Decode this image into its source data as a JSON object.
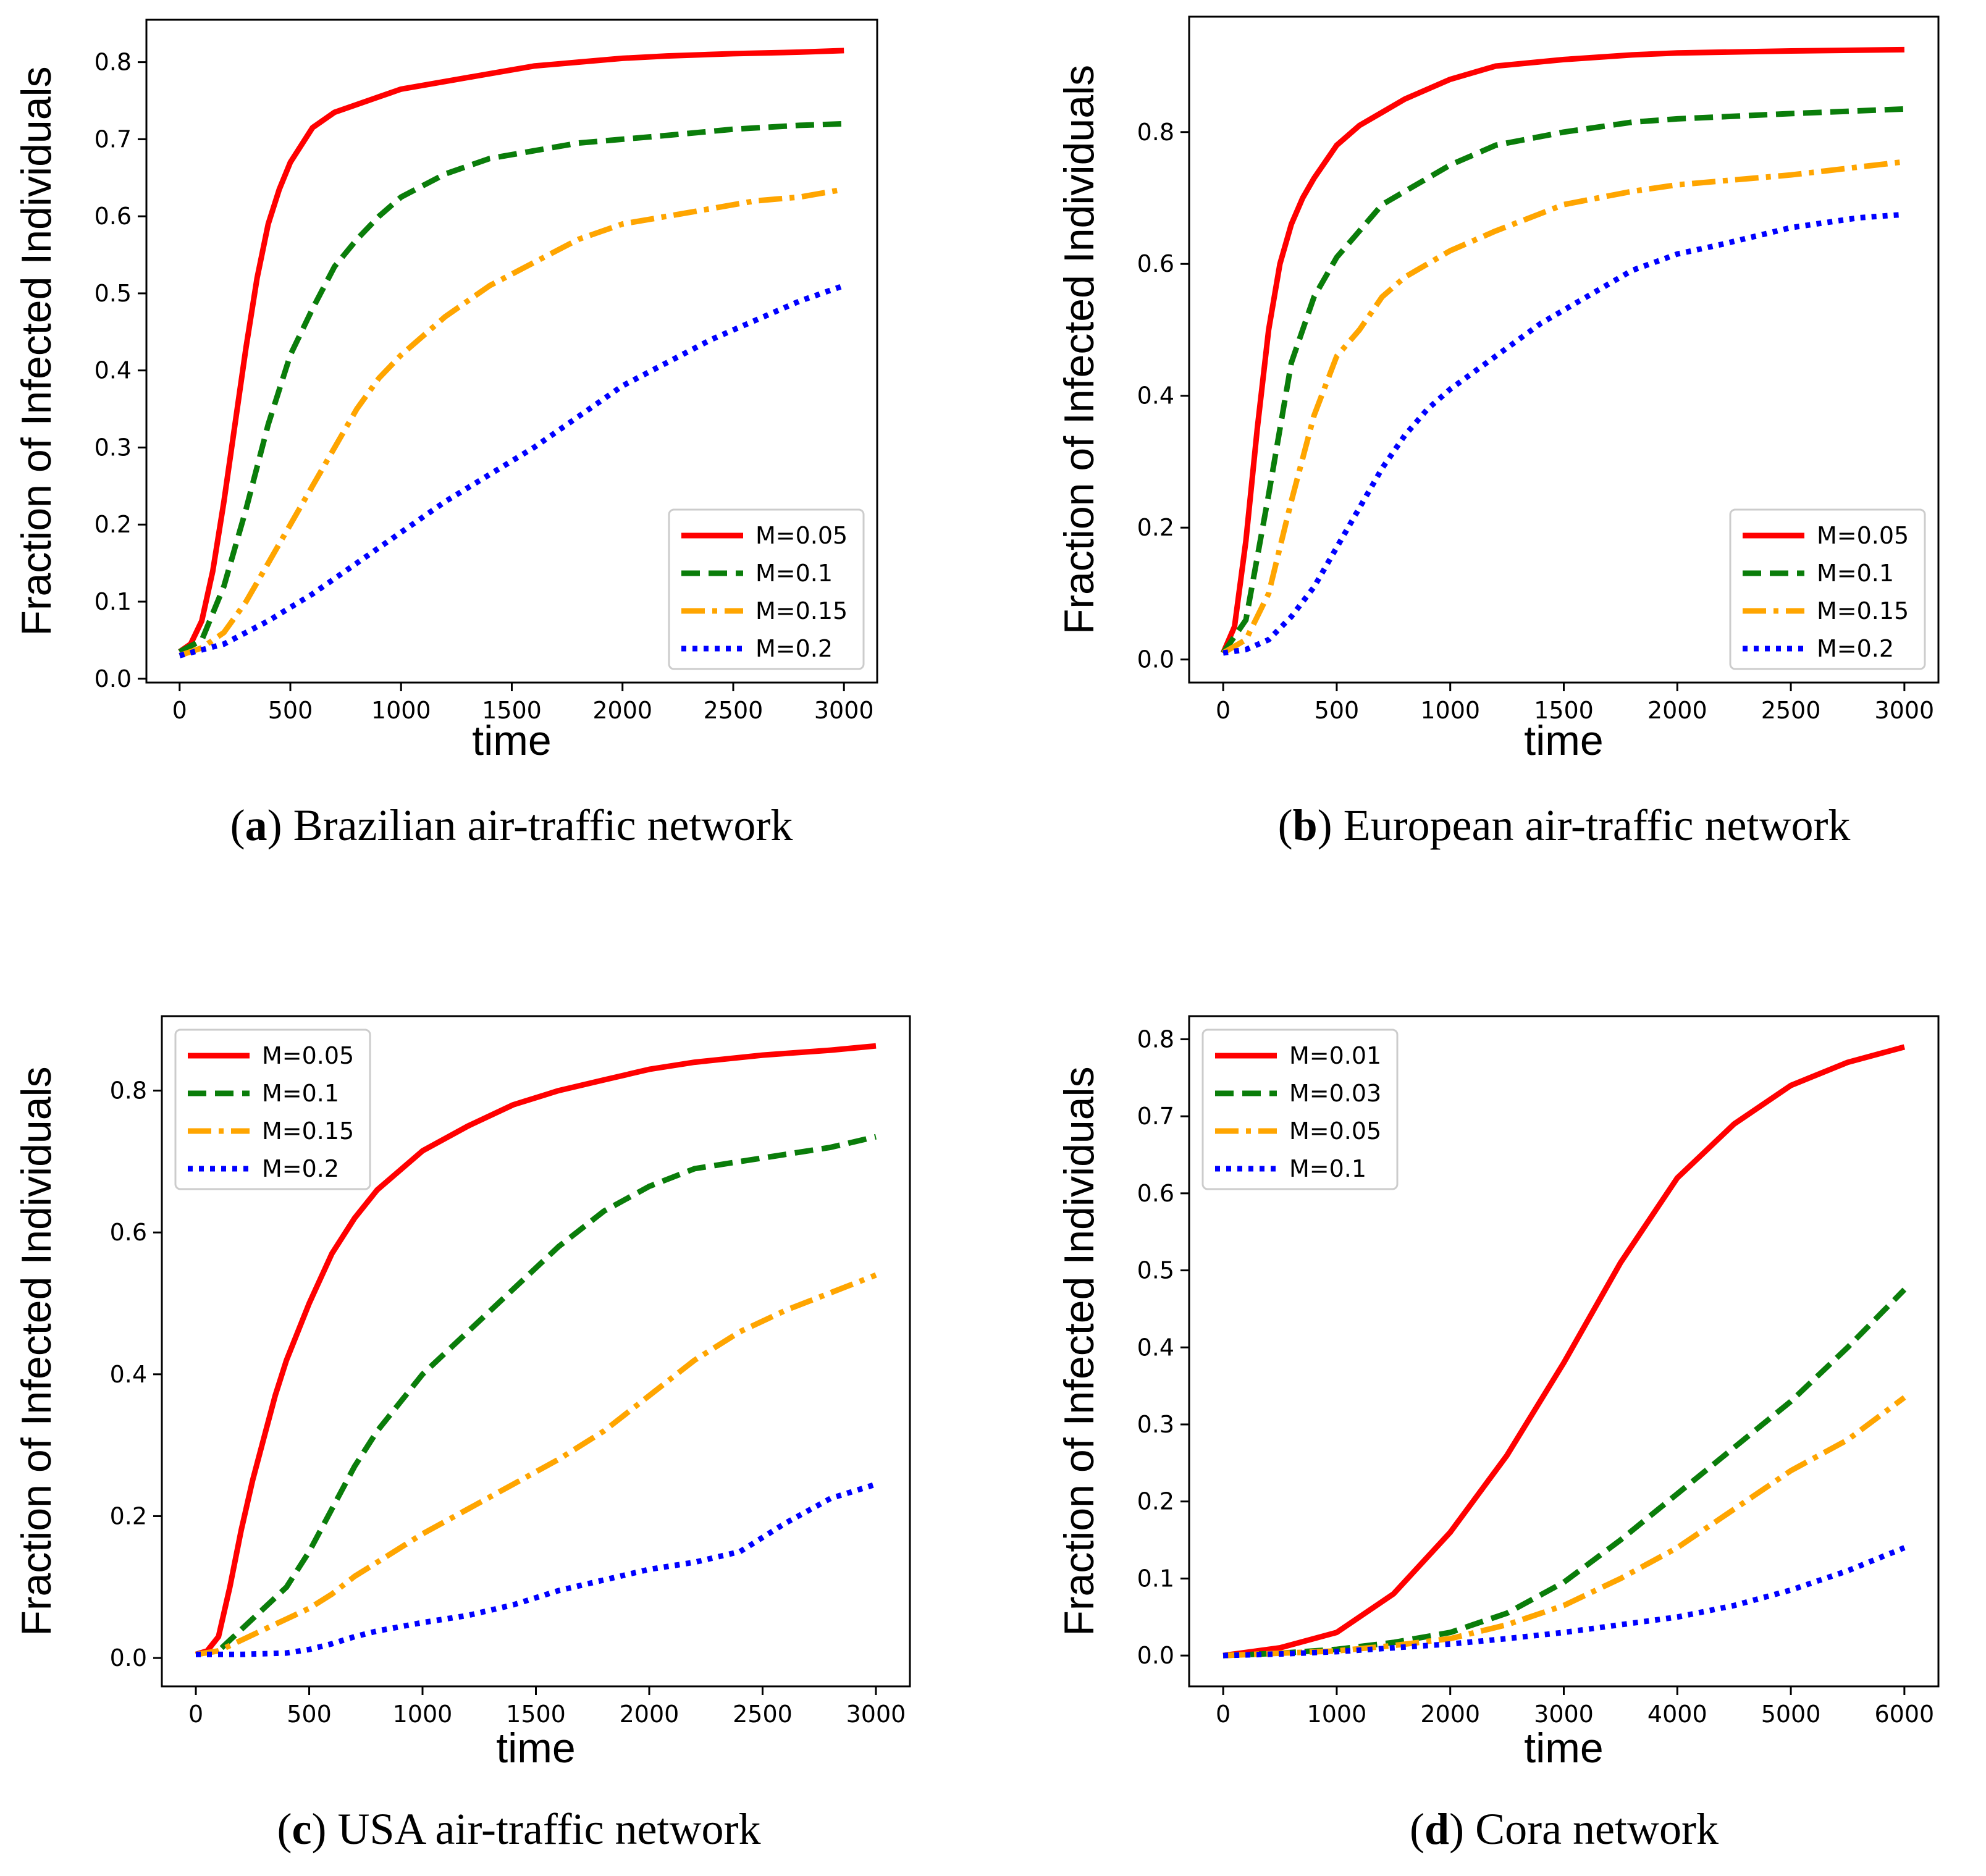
{
  "chart_data": [
    {
      "type": "line",
      "caption_letter": "a",
      "caption_text": "Brazilian air-traffic network",
      "xlabel": "time",
      "ylabel": "Fraction of Infected Individuals",
      "xlim": [
        -150,
        3150
      ],
      "ylim": [
        -0.005,
        0.855
      ],
      "xticks": [
        0,
        500,
        1000,
        1500,
        2000,
        2500,
        3000
      ],
      "xtick_labels": [
        "0",
        "500",
        "1000",
        "1500",
        "2000",
        "2500",
        "3000"
      ],
      "yticks": [
        0,
        0.1,
        0.2,
        0.3,
        0.4,
        0.5,
        0.6,
        0.7,
        0.8
      ],
      "ytick_labels": [
        "0.0",
        "0.1",
        "0.2",
        "0.3",
        "0.4",
        "0.5",
        "0.6",
        "0.7",
        "0.8"
      ],
      "legend_position": "lower-right",
      "series": [
        {
          "name": "M=0.05",
          "color": "#ff0000",
          "style": "solid",
          "x": [
            0,
            50,
            100,
            150,
            200,
            250,
            300,
            350,
            400,
            450,
            500,
            600,
            700,
            800,
            900,
            1000,
            1200,
            1400,
            1600,
            1800,
            2000,
            2200,
            2500,
            2800,
            3000
          ],
          "y": [
            0.035,
            0.045,
            0.075,
            0.14,
            0.23,
            0.33,
            0.43,
            0.52,
            0.59,
            0.635,
            0.67,
            0.715,
            0.735,
            0.745,
            0.755,
            0.765,
            0.775,
            0.785,
            0.795,
            0.8,
            0.805,
            0.808,
            0.811,
            0.813,
            0.815
          ]
        },
        {
          "name": "M=0.1",
          "color": "#0a7d0a",
          "style": "dashed",
          "x": [
            0,
            100,
            200,
            300,
            400,
            500,
            600,
            700,
            800,
            900,
            1000,
            1200,
            1400,
            1600,
            1800,
            2000,
            2200,
            2500,
            2800,
            3000
          ],
          "y": [
            0.035,
            0.05,
            0.12,
            0.22,
            0.33,
            0.42,
            0.48,
            0.535,
            0.57,
            0.6,
            0.625,
            0.655,
            0.675,
            0.685,
            0.695,
            0.7,
            0.705,
            0.713,
            0.718,
            0.72
          ]
        },
        {
          "name": "M=0.15",
          "color": "#ffa500",
          "style": "dashdot",
          "x": [
            0,
            100,
            200,
            300,
            400,
            500,
            600,
            700,
            800,
            900,
            1000,
            1200,
            1400,
            1600,
            1800,
            2000,
            2200,
            2400,
            2600,
            2800,
            3000
          ],
          "y": [
            0.03,
            0.04,
            0.06,
            0.1,
            0.15,
            0.2,
            0.25,
            0.3,
            0.35,
            0.39,
            0.42,
            0.47,
            0.51,
            0.54,
            0.57,
            0.59,
            0.6,
            0.61,
            0.62,
            0.625,
            0.635
          ]
        },
        {
          "name": "M=0.2",
          "color": "#0000ff",
          "style": "dotted",
          "x": [
            0,
            200,
            400,
            600,
            800,
            1000,
            1200,
            1400,
            1600,
            1800,
            2000,
            2200,
            2400,
            2600,
            2800,
            3000
          ],
          "y": [
            0.03,
            0.045,
            0.075,
            0.11,
            0.15,
            0.19,
            0.23,
            0.265,
            0.3,
            0.34,
            0.38,
            0.41,
            0.44,
            0.465,
            0.49,
            0.51
          ]
        }
      ]
    },
    {
      "type": "line",
      "caption_letter": "b",
      "caption_text": "European air-traffic network",
      "xlabel": "time",
      "ylabel": "Fraction of Infected Individuals",
      "xlim": [
        -150,
        3150
      ],
      "ylim": [
        -0.035,
        0.975
      ],
      "xticks": [
        0,
        500,
        1000,
        1500,
        2000,
        2500,
        3000
      ],
      "xtick_labels": [
        "0",
        "500",
        "1000",
        "1500",
        "2000",
        "2500",
        "3000"
      ],
      "yticks": [
        0,
        0.2,
        0.4,
        0.6,
        0.8
      ],
      "ytick_labels": [
        "0.0",
        "0.2",
        "0.4",
        "0.6",
        "0.8"
      ],
      "legend_position": "lower-right",
      "series": [
        {
          "name": "M=0.05",
          "color": "#ff0000",
          "style": "solid",
          "x": [
            0,
            50,
            100,
            150,
            200,
            250,
            300,
            350,
            400,
            500,
            600,
            700,
            800,
            1000,
            1200,
            1500,
            1800,
            2000,
            2500,
            3000
          ],
          "y": [
            0.01,
            0.05,
            0.18,
            0.35,
            0.5,
            0.6,
            0.66,
            0.7,
            0.73,
            0.78,
            0.81,
            0.83,
            0.85,
            0.88,
            0.9,
            0.91,
            0.917,
            0.92,
            0.923,
            0.925
          ]
        },
        {
          "name": "M=0.1",
          "color": "#0a7d0a",
          "style": "dashed",
          "x": [
            0,
            100,
            200,
            300,
            400,
            500,
            600,
            700,
            800,
            1000,
            1200,
            1500,
            1800,
            2000,
            2500,
            3000
          ],
          "y": [
            0.01,
            0.06,
            0.25,
            0.45,
            0.55,
            0.61,
            0.65,
            0.69,
            0.71,
            0.75,
            0.78,
            0.8,
            0.815,
            0.82,
            0.828,
            0.835
          ]
        },
        {
          "name": "M=0.15",
          "color": "#ffa500",
          "style": "dashdot",
          "x": [
            0,
            100,
            200,
            300,
            400,
            500,
            600,
            700,
            800,
            1000,
            1200,
            1500,
            1800,
            2000,
            2500,
            3000
          ],
          "y": [
            0.01,
            0.03,
            0.1,
            0.24,
            0.37,
            0.46,
            0.5,
            0.55,
            0.58,
            0.62,
            0.65,
            0.69,
            0.71,
            0.72,
            0.735,
            0.755
          ]
        },
        {
          "name": "M=0.2",
          "color": "#0000ff",
          "style": "dotted",
          "x": [
            0,
            100,
            200,
            300,
            400,
            500,
            600,
            700,
            800,
            900,
            1000,
            1200,
            1400,
            1600,
            1800,
            2000,
            2200,
            2500,
            2800,
            3000
          ],
          "y": [
            0.01,
            0.015,
            0.03,
            0.065,
            0.11,
            0.17,
            0.23,
            0.29,
            0.34,
            0.38,
            0.41,
            0.46,
            0.51,
            0.55,
            0.59,
            0.615,
            0.63,
            0.655,
            0.67,
            0.675
          ]
        }
      ]
    },
    {
      "type": "line",
      "caption_letter": "c",
      "caption_text": "USA air-traffic network",
      "xlabel": "time",
      "ylabel": "Fraction of Infected Individuals",
      "xlim": [
        -150,
        3150
      ],
      "ylim": [
        -0.04,
        0.905
      ],
      "xticks": [
        0,
        500,
        1000,
        1500,
        2000,
        2500,
        3000
      ],
      "xtick_labels": [
        "0",
        "500",
        "1000",
        "1500",
        "2000",
        "2500",
        "3000"
      ],
      "yticks": [
        0,
        0.2,
        0.4,
        0.6,
        0.8
      ],
      "ytick_labels": [
        "0.0",
        "0.2",
        "0.4",
        "0.6",
        "0.8"
      ],
      "legend_position": "top-left",
      "series": [
        {
          "name": "M=0.05",
          "color": "#ff0000",
          "style": "solid",
          "x": [
            0,
            50,
            100,
            150,
            200,
            250,
            300,
            350,
            400,
            500,
            600,
            700,
            800,
            1000,
            1200,
            1400,
            1600,
            1800,
            2000,
            2200,
            2500,
            2800,
            3000
          ],
          "y": [
            0.005,
            0.01,
            0.03,
            0.1,
            0.18,
            0.25,
            0.31,
            0.37,
            0.42,
            0.5,
            0.57,
            0.62,
            0.66,
            0.715,
            0.75,
            0.78,
            0.8,
            0.815,
            0.83,
            0.84,
            0.85,
            0.857,
            0.863
          ]
        },
        {
          "name": "M=0.1",
          "color": "#0a7d0a",
          "style": "dashed",
          "x": [
            0,
            100,
            200,
            300,
            400,
            500,
            600,
            700,
            800,
            1000,
            1200,
            1400,
            1600,
            1800,
            2000,
            2200,
            2500,
            2800,
            3000
          ],
          "y": [
            0.005,
            0.01,
            0.04,
            0.07,
            0.1,
            0.15,
            0.21,
            0.27,
            0.32,
            0.4,
            0.46,
            0.52,
            0.58,
            0.63,
            0.665,
            0.69,
            0.705,
            0.72,
            0.735
          ]
        },
        {
          "name": "M=0.15",
          "color": "#ffa500",
          "style": "dashdot",
          "x": [
            0,
            100,
            200,
            300,
            400,
            500,
            600,
            700,
            800,
            1000,
            1200,
            1400,
            1600,
            1800,
            2000,
            2200,
            2400,
            2600,
            2800,
            3000
          ],
          "y": [
            0.005,
            0.01,
            0.025,
            0.04,
            0.055,
            0.07,
            0.09,
            0.115,
            0.135,
            0.175,
            0.21,
            0.245,
            0.28,
            0.32,
            0.37,
            0.42,
            0.46,
            0.49,
            0.515,
            0.54
          ]
        },
        {
          "name": "M=0.2",
          "color": "#0000ff",
          "style": "dotted",
          "x": [
            0,
            200,
            400,
            500,
            600,
            700,
            800,
            1000,
            1200,
            1400,
            1600,
            1800,
            2000,
            2200,
            2400,
            2600,
            2800,
            3000
          ],
          "y": [
            0.005,
            0.005,
            0.007,
            0.012,
            0.02,
            0.03,
            0.038,
            0.05,
            0.06,
            0.075,
            0.095,
            0.11,
            0.125,
            0.135,
            0.15,
            0.19,
            0.225,
            0.245
          ]
        }
      ]
    },
    {
      "type": "line",
      "caption_letter": "d",
      "caption_text": "Cora network",
      "xlabel": "time",
      "ylabel": "Fraction of Infected Individuals",
      "xlim": [
        -300,
        6300
      ],
      "ylim": [
        -0.04,
        0.83
      ],
      "xticks": [
        0,
        1000,
        2000,
        3000,
        4000,
        5000,
        6000
      ],
      "xtick_labels": [
        "0",
        "1000",
        "2000",
        "3000",
        "4000",
        "5000",
        "6000"
      ],
      "yticks": [
        0,
        0.1,
        0.2,
        0.3,
        0.4,
        0.5,
        0.6,
        0.7,
        0.8
      ],
      "ytick_labels": [
        "0.0",
        "0.1",
        "0.2",
        "0.3",
        "0.4",
        "0.5",
        "0.6",
        "0.7",
        "0.8"
      ],
      "legend_position": "top-left",
      "series": [
        {
          "name": "M=0.01",
          "color": "#ff0000",
          "style": "solid",
          "x": [
            0,
            500,
            1000,
            1500,
            2000,
            2500,
            3000,
            3500,
            4000,
            4500,
            5000,
            5500,
            6000
          ],
          "y": [
            0.0,
            0.01,
            0.03,
            0.08,
            0.16,
            0.26,
            0.38,
            0.51,
            0.62,
            0.69,
            0.74,
            0.77,
            0.79
          ]
        },
        {
          "name": "M=0.03",
          "color": "#0a7d0a",
          "style": "dashed",
          "x": [
            0,
            500,
            1000,
            1500,
            2000,
            2500,
            3000,
            3500,
            4000,
            4500,
            5000,
            5500,
            6000
          ],
          "y": [
            0.0,
            0.003,
            0.008,
            0.017,
            0.03,
            0.055,
            0.095,
            0.15,
            0.21,
            0.27,
            0.33,
            0.4,
            0.475
          ]
        },
        {
          "name": "M=0.05",
          "color": "#ffa500",
          "style": "dashdot",
          "x": [
            0,
            500,
            1000,
            1500,
            2000,
            2500,
            3000,
            3500,
            4000,
            4500,
            5000,
            5500,
            6000
          ],
          "y": [
            0.0,
            0.003,
            0.006,
            0.013,
            0.022,
            0.04,
            0.065,
            0.1,
            0.14,
            0.19,
            0.24,
            0.28,
            0.335
          ]
        },
        {
          "name": "M=0.1",
          "color": "#0000ff",
          "style": "dotted",
          "x": [
            0,
            500,
            1000,
            1500,
            2000,
            2500,
            3000,
            3500,
            4000,
            4500,
            5000,
            5500,
            6000
          ],
          "y": [
            0.0,
            0.002,
            0.005,
            0.01,
            0.015,
            0.022,
            0.03,
            0.04,
            0.05,
            0.065,
            0.085,
            0.11,
            0.14
          ]
        }
      ]
    }
  ]
}
